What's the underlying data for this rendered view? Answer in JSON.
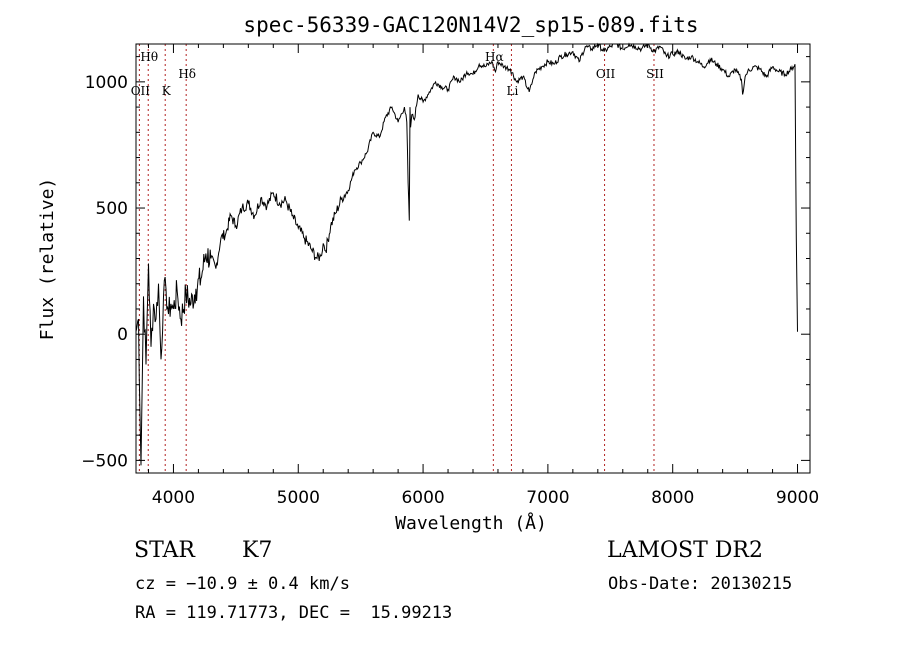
{
  "chart_data": {
    "type": "line",
    "title": "spec-56339-GAC120N14V2_sp15-089.fits",
    "xlabel": "Wavelength (Å)",
    "ylabel": "Flux (relative)",
    "xlim": [
      3700,
      9100
    ],
    "ylim": [
      -550,
      1150
    ],
    "xticks": [
      4000,
      5000,
      6000,
      7000,
      8000,
      9000
    ],
    "xtick_labels": [
      "4000",
      "5000",
      "6000",
      "7000",
      "8000",
      "9000"
    ],
    "yticks": [
      -500,
      0,
      500,
      1000
    ],
    "ytick_labels": [
      "−500",
      "0",
      "500",
      "1000"
    ],
    "grid": false,
    "line_color": "#000000",
    "marker_color": "#b22222",
    "spectral_lines": [
      {
        "label": "Hθ",
        "wavelength": 3798,
        "label_row": "top"
      },
      {
        "label": "OII",
        "wavelength": 3727,
        "label_row": "low"
      },
      {
        "label": "K",
        "wavelength": 3934,
        "label_row": "low"
      },
      {
        "label": "Hδ",
        "wavelength": 4102,
        "label_row": "mid"
      },
      {
        "label": "Hα",
        "wavelength": 6563,
        "label_row": "top"
      },
      {
        "label": "Li",
        "wavelength": 6708,
        "label_row": "low"
      },
      {
        "label": "OII",
        "wavelength": 7454,
        "label_row": "mid"
      },
      {
        "label": "SII",
        "wavelength": 7850,
        "label_row": "mid"
      }
    ],
    "series": [
      {
        "x": [
          3700,
          3720,
          3740,
          3760,
          3780,
          3800,
          3820,
          3840,
          3860,
          3880,
          3900,
          3920,
          3940,
          3960,
          3980,
          4000,
          4030,
          4060,
          4100,
          4140,
          4180,
          4220,
          4260,
          4300,
          4340,
          4380,
          4420,
          4460,
          4500,
          4550,
          4600,
          4650,
          4700,
          4750,
          4800,
          4850,
          4900,
          4950,
          5000,
          5050,
          5100,
          5150,
          5180,
          5200,
          5220,
          5260,
          5300,
          5350,
          5400,
          5450,
          5500,
          5550,
          5600,
          5650,
          5700,
          5750,
          5800,
          5850,
          5870,
          5880,
          5890,
          5895,
          5900,
          5910,
          5930,
          5960,
          6000,
          6050,
          6100,
          6150,
          6200,
          6250,
          6300,
          6350,
          6400,
          6450,
          6500,
          6550,
          6580,
          6600,
          6650,
          6700,
          6750,
          6800,
          6850,
          6870,
          6880,
          6900,
          6950,
          7000,
          7050,
          7100,
          7150,
          7200,
          7250,
          7300,
          7350,
          7400,
          7450,
          7500,
          7550,
          7600,
          7650,
          7700,
          7750,
          7800,
          7850,
          7900,
          7950,
          8000,
          8050,
          8100,
          8150,
          8200,
          8250,
          8300,
          8350,
          8400,
          8450,
          8500,
          8550,
          8560,
          8580,
          8600,
          8650,
          8700,
          8750,
          8800,
          8850,
          8900,
          8950,
          8980,
          8990,
          9000
        ],
        "y": [
          10,
          60,
          -520,
          150,
          -120,
          280,
          -50,
          120,
          60,
          200,
          -100,
          150,
          180,
          80,
          120,
          100,
          170,
          60,
          160,
          120,
          180,
          220,
          320,
          300,
          260,
          380,
          400,
          470,
          430,
          500,
          520,
          470,
          540,
          510,
          560,
          520,
          530,
          470,
          420,
          380,
          340,
          300,
          310,
          360,
          330,
          430,
          480,
          540,
          570,
          650,
          680,
          720,
          800,
          780,
          860,
          900,
          840,
          900,
          840,
          600,
          450,
          900,
          820,
          870,
          850,
          950,
          920,
          960,
          1000,
          980,
          970,
          1020,
          1000,
          1040,
          1030,
          1070,
          1060,
          1080,
          1040,
          1080,
          1060,
          1050,
          1000,
          1020,
          960,
          990,
          1010,
          1040,
          1060,
          1080,
          1070,
          1100,
          1110,
          1120,
          1080,
          1140,
          1130,
          1150,
          1120,
          1140,
          1150,
          1130,
          1150,
          1140,
          1130,
          1150,
          1120,
          1140,
          1100,
          1110,
          1120,
          1090,
          1100,
          1080,
          1060,
          1090,
          1070,
          1050,
          1020,
          1050,
          1010,
          950,
          1020,
          1040,
          1060,
          1050,
          1020,
          1060,
          1040,
          1030,
          1050,
          1070,
          380,
          10
        ]
      }
    ]
  },
  "info": {
    "class": "STAR",
    "subclass": "K7",
    "survey": "LAMOST DR2",
    "cz": "cz = −10.9 ± 0.4 km/s",
    "obs_date": "Obs-Date: 20130215",
    "coords": "RA = 119.71773, DEC =  15.99213"
  }
}
